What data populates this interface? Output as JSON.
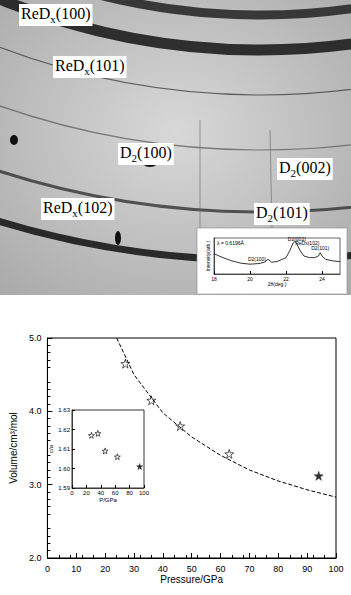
{
  "diffraction_image": {
    "labels": [
      "ReDx(100)",
      "ReDx(101)",
      "D2(100)",
      "D2(002)",
      "ReDx(102)",
      "D2(101)"
    ]
  },
  "chart_data": [
    {
      "type": "line",
      "xlabel": "2θ(deg.)",
      "ylabel": "Intensity(arb.)",
      "x": [
        18,
        18.5,
        19,
        19.5,
        20,
        20.5,
        20.8,
        21,
        21.2,
        21.5,
        22,
        22.2,
        22.4,
        22.5,
        22.6,
        22.8,
        23,
        23.3,
        23.6,
        23.8,
        23.9,
        24,
        24.2,
        24.6,
        25
      ],
      "values": [
        0.62,
        0.5,
        0.4,
        0.33,
        0.3,
        0.32,
        0.36,
        0.45,
        0.36,
        0.38,
        0.5,
        0.7,
        0.95,
        1.0,
        0.92,
        0.7,
        0.55,
        0.5,
        0.5,
        0.55,
        0.65,
        0.55,
        0.45,
        0.4,
        0.38
      ],
      "color": "#000000",
      "annotations": [
        {
          "text": "λ = 0.6196Å"
        },
        {
          "text": "D2(100)",
          "x": 21
        },
        {
          "text": "ReDx(102)",
          "x": 22.4
        },
        {
          "text": "D2(002)",
          "x": 22.6
        },
        {
          "text": "D2(101)",
          "x": 23.9
        }
      ],
      "xlim": [
        18,
        25
      ],
      "xticks": [
        18,
        20,
        22,
        24
      ],
      "ylim": [
        0,
        1.1
      ],
      "tick_labels": "x"
    },
    {
      "type": "scatter",
      "xlabel": "Pressure/GPa",
      "ylabel": "Volume/cm³/mol",
      "xlim": [
        0,
        100
      ],
      "xticks": [
        0,
        10,
        20,
        30,
        40,
        50,
        60,
        70,
        80,
        90,
        100
      ],
      "ylim": [
        2,
        5
      ],
      "yticks": [
        {
          "value": 2,
          "label": "2.0"
        },
        {
          "value": 3,
          "label": "3.0"
        },
        {
          "value": 4,
          "label": "4.0"
        },
        {
          "value": 5,
          "label": "5.0"
        }
      ],
      "series": [
        {
          "type": "scatter",
          "marker": "open_star",
          "color": "#000000",
          "x": [
            27,
            36,
            46,
            63
          ],
          "values": [
            4.65,
            4.15,
            3.8,
            3.42
          ]
        },
        {
          "type": "scatter",
          "marker": "star",
          "color": "#000000",
          "x": [
            94
          ],
          "values": [
            3.12
          ]
        },
        {
          "type": "line",
          "line_style": "dashed",
          "color": "#000000",
          "x": [
            24,
            30,
            40,
            50,
            60,
            70,
            80,
            90,
            100
          ],
          "values": [
            5.0,
            4.5,
            3.98,
            3.65,
            3.4,
            3.2,
            3.05,
            2.93,
            2.83
          ]
        }
      ]
    },
    {
      "type": "scatter",
      "xlabel": "P/GPa",
      "ylabel": "c/a",
      "xlim": [
        0,
        100
      ],
      "xticks": [
        0,
        20,
        40,
        60,
        80,
        100
      ],
      "ylim": [
        1.59,
        1.63
      ],
      "yticks": [
        1.59,
        {
          "value": 1.6,
          "label": "1.60"
        },
        1.61,
        1.62,
        1.63
      ],
      "series": [
        {
          "type": "scatter",
          "marker": "open_star",
          "color": "#000000",
          "x": [
            27,
            36,
            46,
            63
          ],
          "values": [
            1.617,
            1.618,
            1.609,
            1.606
          ]
        },
        {
          "type": "scatter",
          "marker": "star",
          "color": "#000000",
          "x": [
            94
          ],
          "values": [
            1.601
          ]
        }
      ]
    }
  ]
}
